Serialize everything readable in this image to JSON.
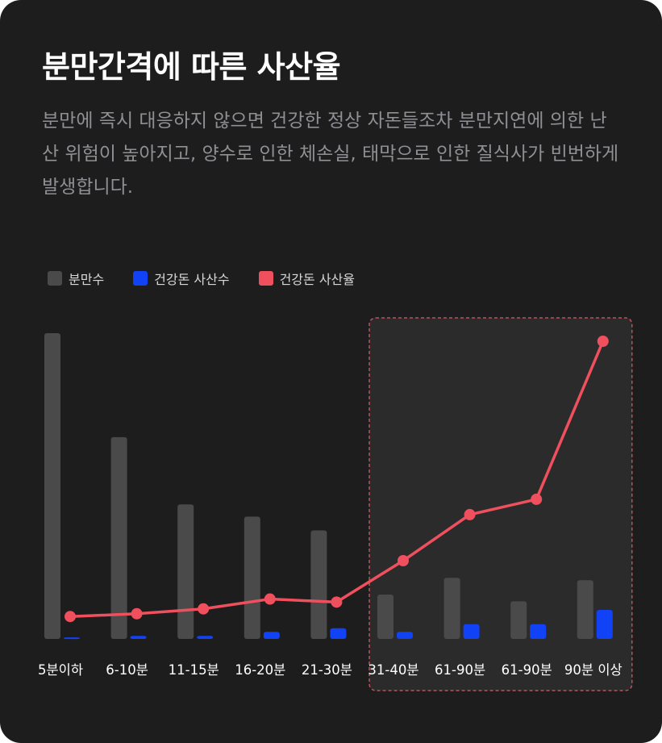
{
  "title": "분만간격에 따른 사산율",
  "description": "분만에 즉시 대응하지 않으면 건강한 정상 자돈들조차 분만지연에 의한 난산 위험이 높아지고, 양수로 인한 체손실, 태막으로 인한 질식사가 빈번하게 발생합니다.",
  "colors": {
    "background": "#1d1d1d",
    "births": "#4a4a4a",
    "healthy_stillbirths": "#1242f5",
    "healthy_stillbirth_rate": "#f0505e",
    "highlight_fill": "#2c2b2c",
    "highlight_border": "#b8535c"
  },
  "chart_data": {
    "type": "bar",
    "title": "분만간격에 따른 사산율",
    "categories": [
      "5분이하",
      "6-10분",
      "11-15분",
      "16-20분",
      "21-30분",
      "31-40분",
      "61-90분",
      "61-90분",
      "90분 이상"
    ],
    "series": [
      {
        "name": "분만수",
        "type": "bar",
        "color": "#4a4a4a",
        "values": [
          100,
          66,
          44,
          40,
          35.5,
          14.5,
          20,
          12.3,
          19.2
        ]
      },
      {
        "name": "건강돈 사산수",
        "type": "bar",
        "color": "#1242f5",
        "values": [
          0.5,
          1,
          1,
          2.3,
          3.5,
          2.3,
          4.8,
          4.8,
          9.5
        ]
      },
      {
        "name": "건강돈 사산율",
        "type": "line",
        "color": "#f0505e",
        "values": [
          7.3,
          8.2,
          9.8,
          13,
          12,
          25.5,
          40.5,
          45.5,
          97
        ]
      }
    ],
    "ylim": [
      0,
      100
    ],
    "highlight": {
      "from_category": "31-40분",
      "to_category": "90분 이상",
      "style": "dashed"
    },
    "legend_position": "top-left",
    "grid": false,
    "xlabel": "",
    "ylabel": ""
  }
}
